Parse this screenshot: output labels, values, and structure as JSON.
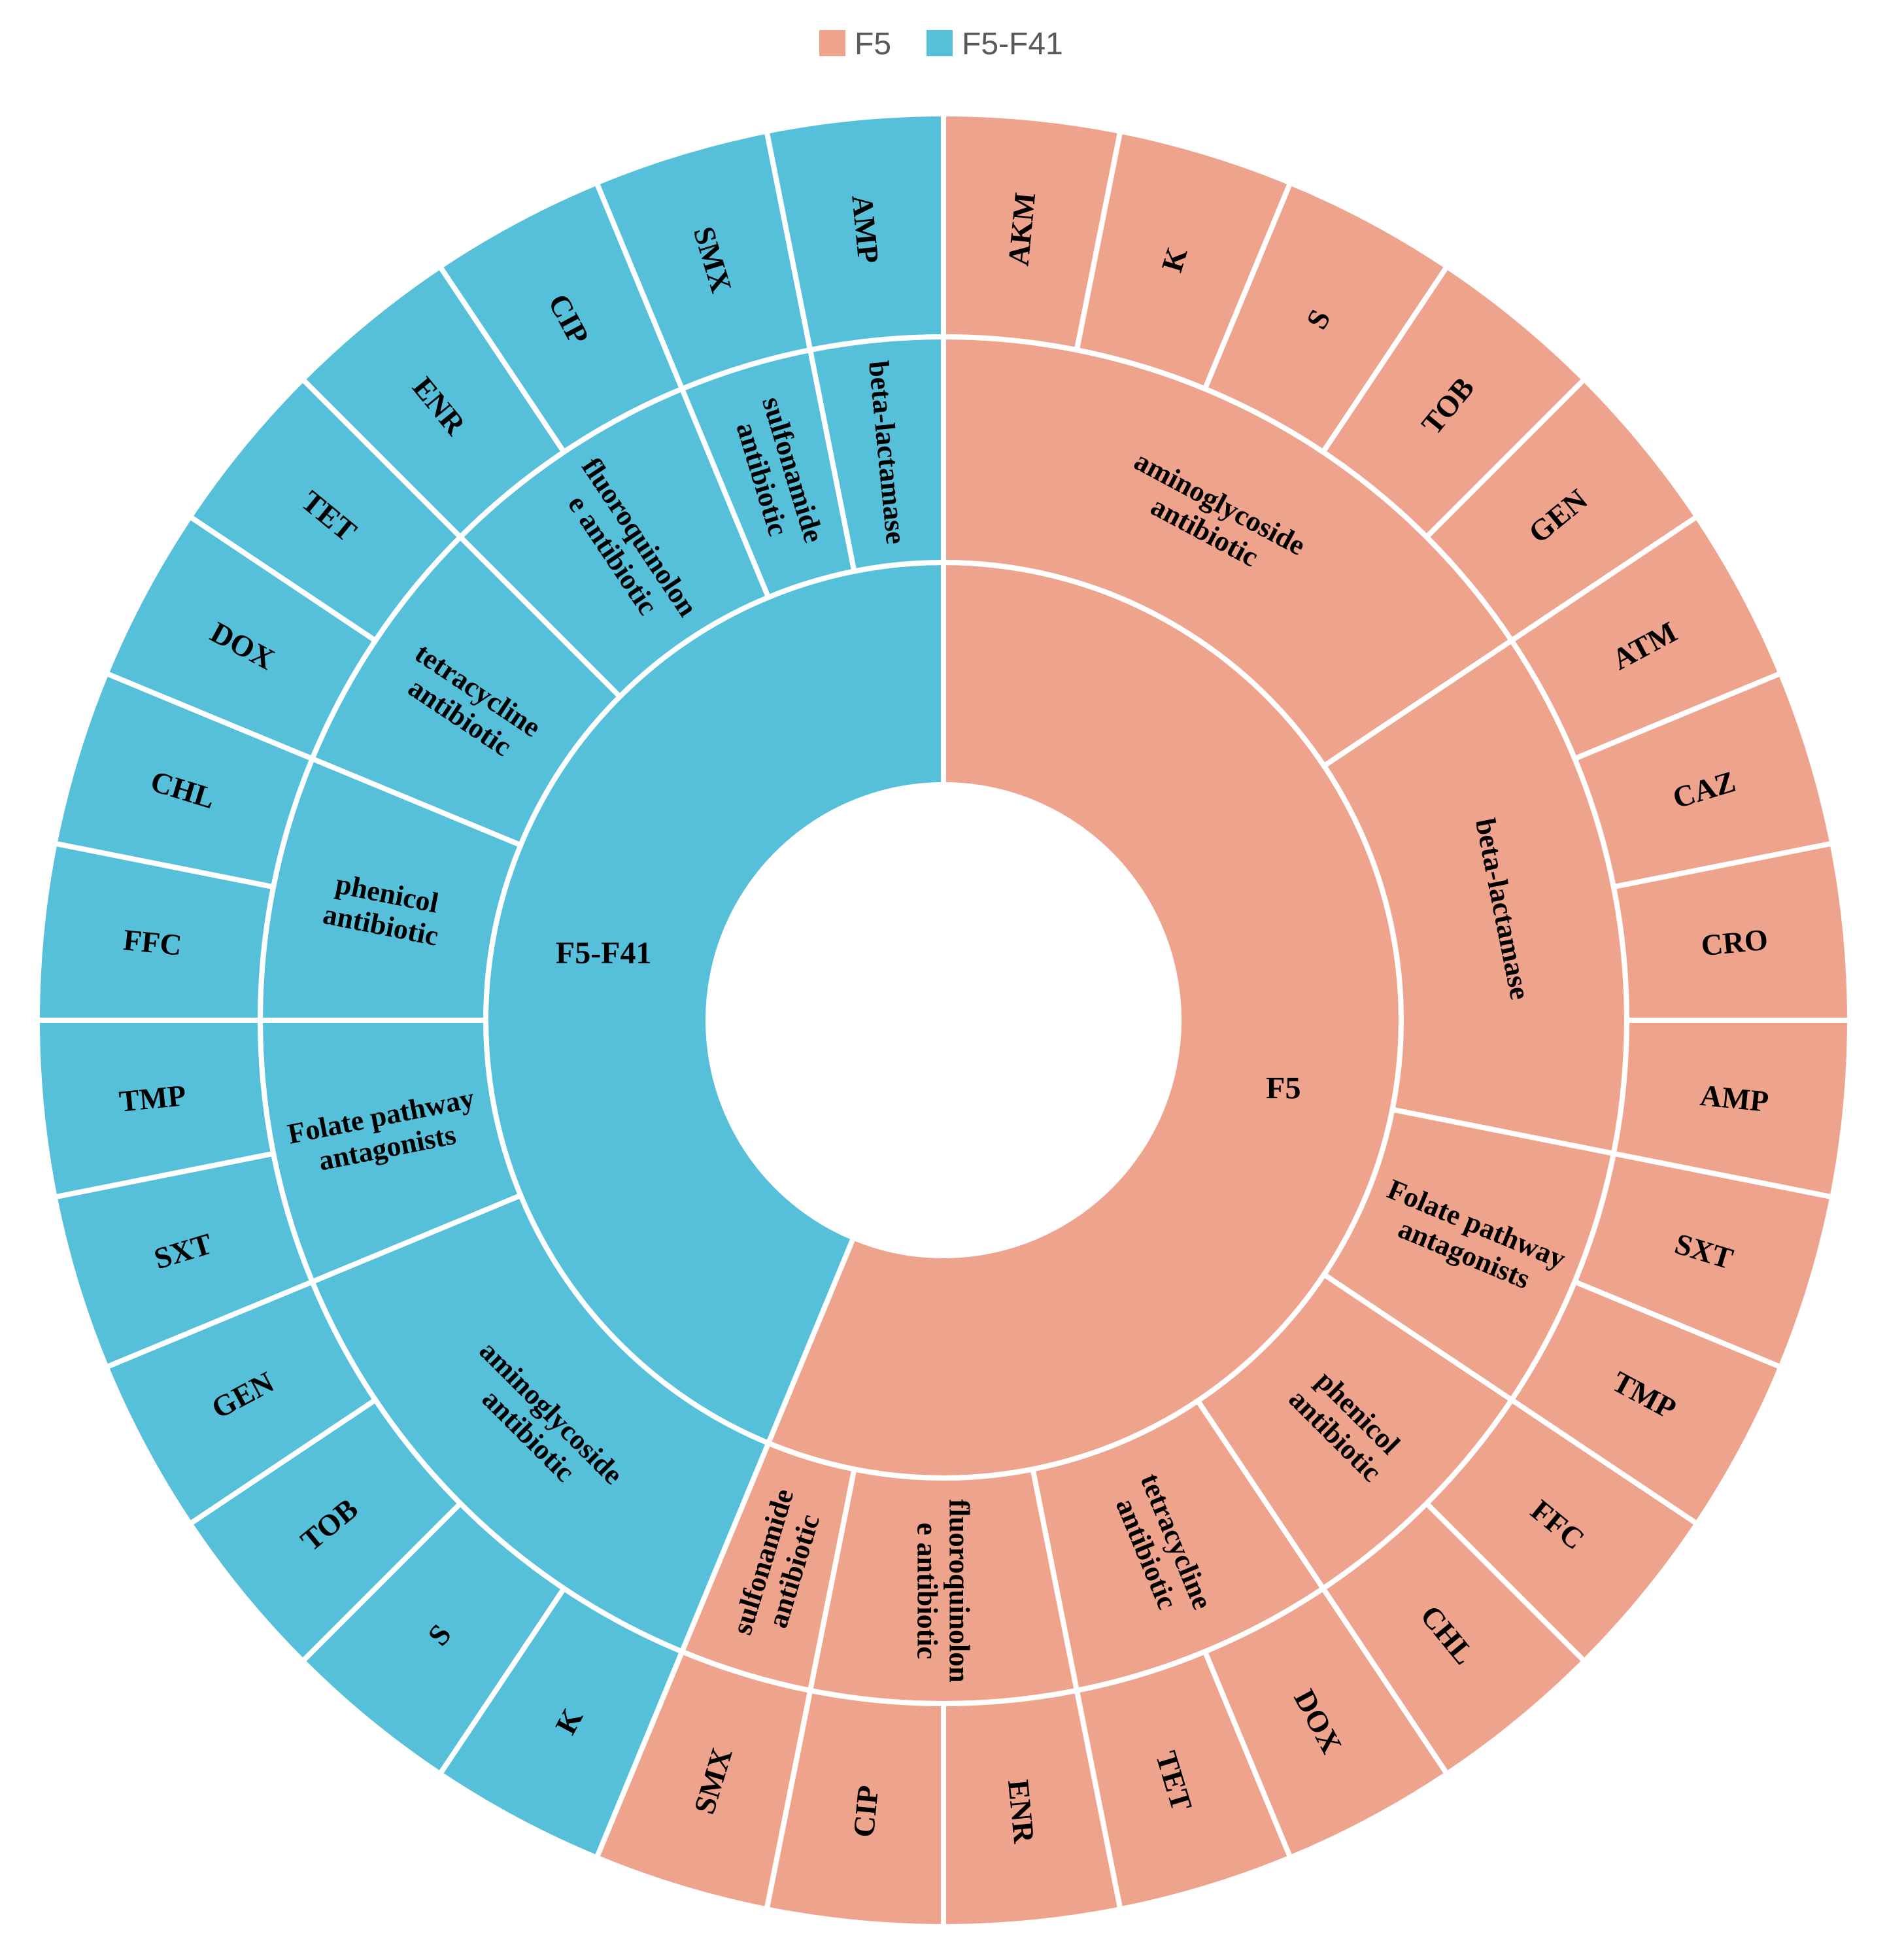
{
  "chart_data": {
    "type": "sunburst",
    "colors": {
      "F5": "#EEA48C",
      "F5-F41": "#56BFD9",
      "border": "#FFFFFF"
    },
    "legend": {
      "position": "top",
      "entries": [
        "F5",
        "F5-F41"
      ]
    },
    "groups": [
      {
        "name": "F5",
        "classes": [
          {
            "name": "aminoglycoside antibiotic",
            "lines": [
              "aminoglycoside",
              "antibiotic"
            ],
            "drugs": [
              "AKM",
              "K",
              "S",
              "TOB",
              "GEN"
            ]
          },
          {
            "name": "beta-lactamase",
            "lines": [
              "beta-lactamase"
            ],
            "drugs": [
              "ATM",
              "CAZ",
              "CRO",
              "AMP"
            ]
          },
          {
            "name": "Folate pathway antagonists",
            "lines": [
              "Folate pathway",
              "antagonists"
            ],
            "drugs": [
              "SXT",
              "TMP"
            ]
          },
          {
            "name": "phenicol antibiotic",
            "lines": [
              "phenicol",
              "antibiotic"
            ],
            "drugs": [
              "FFC",
              "CHL"
            ]
          },
          {
            "name": "tetracycline antibiotic",
            "lines": [
              "tetracycline",
              "antibiotic"
            ],
            "drugs": [
              "DOX",
              "TET"
            ]
          },
          {
            "name": "fluoroquinolone antibiotic",
            "lines": [
              "fluoroquinolon",
              "e antibiotic"
            ],
            "drugs": [
              "ENR",
              "CIP"
            ]
          },
          {
            "name": "sulfonamide antibiotic",
            "lines": [
              "sulfonamide",
              "antibiotic"
            ],
            "drugs": [
              "SMX"
            ]
          }
        ]
      },
      {
        "name": "F5-F41",
        "classes": [
          {
            "name": "aminoglycoside antibiotic",
            "lines": [
              "aminoglycoside",
              "antibiotic"
            ],
            "drugs": [
              "K",
              "S",
              "TOB",
              "GEN"
            ]
          },
          {
            "name": "Folate pathway antagonists",
            "lines": [
              "Folate pathway",
              "antagonists"
            ],
            "drugs": [
              "SXT",
              "TMP"
            ]
          },
          {
            "name": "phenicol antibiotic",
            "lines": [
              "phenicol",
              "antibiotic"
            ],
            "drugs": [
              "FFC",
              "CHL"
            ]
          },
          {
            "name": "tetracycline antibiotic",
            "lines": [
              "tetracycline",
              "antibiotic"
            ],
            "drugs": [
              "DOX",
              "TET"
            ]
          },
          {
            "name": "fluoroquinolone antibiotic",
            "lines": [
              "fluoroquinolon",
              "e antibiotic"
            ],
            "drugs": [
              "ENR",
              "CIP"
            ]
          },
          {
            "name": "sulfonamide antibiotic",
            "lines": [
              "sulfonamide",
              "antibiotic"
            ],
            "drugs": [
              "SMX"
            ]
          },
          {
            "name": "beta-lactamase",
            "lines": [
              "beta-lactamase"
            ],
            "drugs": [
              "AMP"
            ]
          }
        ]
      }
    ]
  }
}
